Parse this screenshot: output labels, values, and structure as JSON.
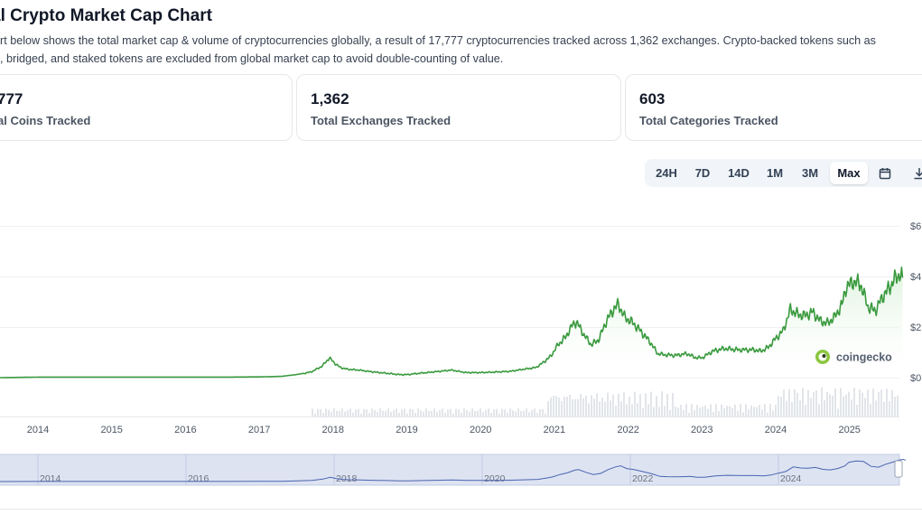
{
  "header": {
    "title": "al Crypto Market Cap Chart",
    "desc_line1": "hart below shows the total market cap & volume of cryptocurrencies globally, a result of 17,777 cryptocurrencies tracked across 1,362 exchanges. Crypto-backed tokens such as",
    "desc_line2": "ed, bridged, and staked tokens are excluded from global market cap to avoid double-counting of value."
  },
  "stats": [
    {
      "value": "777",
      "label": "al Coins Tracked"
    },
    {
      "value": "1,362",
      "label": "Total Exchanges Tracked"
    },
    {
      "value": "603",
      "label": "Total Categories Tracked"
    }
  ],
  "range_tabs": [
    "24H",
    "7D",
    "14D",
    "1M",
    "3M",
    "Max"
  ],
  "active_tab": "Max",
  "toolbar_icons": [
    "calendar-icon",
    "download-icon"
  ],
  "watermark": "coingecko",
  "chart_data": {
    "type": "area",
    "x_ticks": [
      "2014",
      "2015",
      "2016",
      "2017",
      "2018",
      "2019",
      "2020",
      "2021",
      "2022",
      "2023",
      "2024",
      "2025"
    ],
    "y_ticks": [
      "$0",
      "$2",
      "$4",
      "$6"
    ],
    "ylim": [
      0,
      6
    ],
    "navigator_ticks": [
      "2014",
      "2016",
      "2018",
      "2020",
      "2022",
      "2024"
    ],
    "colors": {
      "line": "#3a9a3e",
      "fill": "#dcf2dc",
      "volume": "#e2e5e9",
      "navigator_bg": "#dde3f1",
      "navigator_line": "#4a64b0"
    },
    "series": [
      {
        "x": [
          2013.0,
          2013.5,
          2014.0,
          2014.5,
          2015.0,
          2015.5,
          2016.0,
          2016.5,
          2017.0,
          2017.3,
          2017.5,
          2017.7,
          2017.85,
          2017.95,
          2018.03,
          2018.1,
          2018.2,
          2018.35,
          2018.5,
          2018.7,
          2018.9,
          2019.0,
          2019.2,
          2019.45,
          2019.6,
          2019.8,
          2020.0,
          2020.2,
          2020.4,
          2020.6,
          2020.75,
          2020.85,
          2020.95,
          2021.05,
          2021.15,
          2021.25,
          2021.3,
          2021.4,
          2021.5,
          2021.6,
          2021.7,
          2021.8,
          2021.87,
          2021.95,
          2022.05,
          2022.15,
          2022.3,
          2022.4,
          2022.5,
          2022.65,
          2022.8,
          2022.9,
          2023.0,
          2023.15,
          2023.3,
          2023.5,
          2023.7,
          2023.8,
          2023.9,
          2024.0,
          2024.1,
          2024.2,
          2024.3,
          2024.4,
          2024.5,
          2024.6,
          2024.7,
          2024.8,
          2024.9,
          2024.95,
          2025.05,
          2025.15,
          2025.25,
          2025.35,
          2025.45,
          2025.55,
          2025.6,
          2025.68,
          2025.72
        ],
        "values": [
          0.0,
          0.0,
          0.02,
          0.02,
          0.02,
          0.02,
          0.02,
          0.02,
          0.03,
          0.05,
          0.12,
          0.22,
          0.45,
          0.78,
          0.55,
          0.4,
          0.33,
          0.3,
          0.24,
          0.18,
          0.12,
          0.12,
          0.18,
          0.25,
          0.3,
          0.2,
          0.2,
          0.22,
          0.25,
          0.34,
          0.4,
          0.6,
          0.85,
          1.3,
          1.6,
          2.1,
          2.2,
          1.7,
          1.3,
          1.5,
          2.2,
          2.7,
          2.9,
          2.4,
          2.2,
          1.9,
          1.4,
          0.95,
          0.9,
          0.88,
          0.95,
          0.8,
          0.78,
          1.05,
          1.15,
          1.1,
          1.1,
          1.05,
          1.2,
          1.55,
          1.85,
          2.7,
          2.5,
          2.45,
          2.6,
          2.25,
          2.15,
          2.4,
          2.9,
          3.55,
          3.8,
          3.7,
          2.8,
          2.65,
          3.2,
          3.6,
          3.85,
          4.1,
          3.95
        ]
      }
    ]
  }
}
